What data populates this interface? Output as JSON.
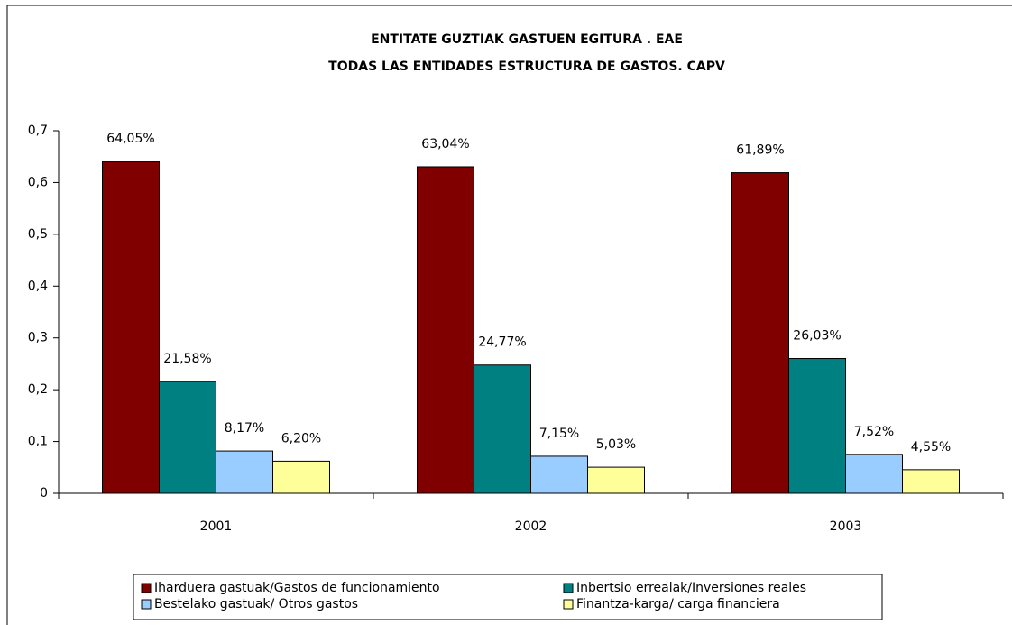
{
  "chart_data": {
    "type": "bar",
    "title": "ENTITATE GUZTIAK GASTUEN EGITURA . EAE",
    "subtitle": "TODAS LAS ENTIDADES ESTRUCTURA DE GASTOS. CAPV",
    "categories": [
      "2001",
      "2002",
      "2003"
    ],
    "series": [
      {
        "name": "Iharduera gastuak/Gastos de funcionamiento",
        "color": "#800000",
        "values": [
          0.6405,
          0.6304,
          0.6189
        ],
        "value_labels": [
          "64,05%",
          "63,04%",
          "61,89%"
        ]
      },
      {
        "name": "Inbertsio errealak/Inversiones reales",
        "color": "#008080",
        "values": [
          0.2158,
          0.2477,
          0.2603
        ],
        "value_labels": [
          "21,58%",
          "24,77%",
          "26,03%"
        ]
      },
      {
        "name": "Bestelako gastuak/ Otros gastos",
        "color": "#99ccff",
        "values": [
          0.0817,
          0.0715,
          0.0752
        ],
        "value_labels": [
          "8,17%",
          "7,15%",
          "7,52%"
        ]
      },
      {
        "name": "Finantza-karga/ carga financiera",
        "color": "#ffff99",
        "values": [
          0.062,
          0.0503,
          0.0455
        ],
        "value_labels": [
          "6,20%",
          "5,03%",
          "4,55%"
        ]
      }
    ],
    "ylim": [
      0,
      0.7
    ],
    "yticks": [
      0,
      {
        "value": 0.1,
        "label": "0,1"
      },
      {
        "value": 0.2,
        "label": "0,2"
      },
      {
        "value": 0.3,
        "label": "0,3"
      },
      {
        "value": 0.4,
        "label": "0,4"
      },
      {
        "value": 0.5,
        "label": "0,5"
      },
      {
        "value": 0.6,
        "label": "0,6"
      },
      {
        "value": 0.7,
        "label": "0,7"
      }
    ],
    "grid": false,
    "legend": "bottom"
  }
}
